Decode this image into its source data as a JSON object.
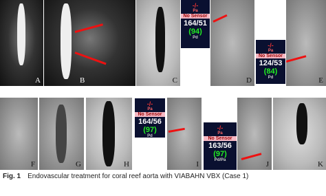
{
  "panels": [
    {
      "label": "A"
    },
    {
      "label": "B"
    },
    {
      "label": "C"
    },
    {
      "label": "D"
    },
    {
      "label": "E"
    },
    {
      "label": "F"
    },
    {
      "label": "G"
    },
    {
      "label": "H"
    },
    {
      "label": "I"
    },
    {
      "label": "J"
    },
    {
      "label": "K"
    }
  ],
  "monitors": [
    {
      "top": "-/-",
      "sub": "Pa",
      "status": "No Sensor",
      "pressure": "164/51",
      "mean": "(94)",
      "bottom": "Pd"
    },
    {
      "top": "-/-",
      "sub": "Pa",
      "status": "No Sensor",
      "pressure": "124/53",
      "mean": "(84)",
      "bottom": "Pd"
    },
    {
      "top": "-/-",
      "sub": "Pa",
      "status": "No Sensor",
      "pressure": "164/56",
      "mean": "(97)",
      "bottom": "Pd"
    },
    {
      "top": "-/-",
      "sub": "Pa",
      "status": "No Sensor",
      "pressure": "163/56",
      "mean": "(97)",
      "bottom": "Pd/Pa"
    }
  ],
  "caption": {
    "label": "Fig. 1",
    "text": "Endovascular treatment for coral reef aorta with VIABAHN VBX (Case 1)"
  }
}
